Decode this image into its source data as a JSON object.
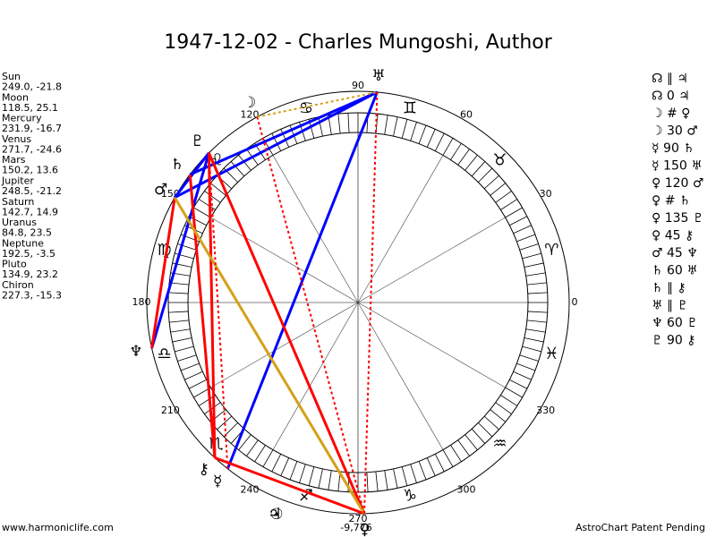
{
  "header": {
    "title": "1947-12-02 - Charles Mungoshi, Author"
  },
  "planets": [
    {
      "name": "Sun",
      "glyph": "☉",
      "position": "249.0, -21.8"
    },
    {
      "name": "Moon",
      "glyph": "☽",
      "position": "118.5, 25.1"
    },
    {
      "name": "Mercury",
      "glyph": "☿",
      "position": "231.9, -16.7"
    },
    {
      "name": "Venus",
      "glyph": "♀",
      "position": "271.7, -24.6"
    },
    {
      "name": "Mars",
      "glyph": "♂",
      "position": "150.2, 13.6"
    },
    {
      "name": "Jupiter",
      "glyph": "♃",
      "position": "248.5, -21.2"
    },
    {
      "name": "Saturn",
      "glyph": "♄",
      "position": "142.7, 14.9"
    },
    {
      "name": "Uranus",
      "glyph": "♅",
      "position": "84.8, 23.5"
    },
    {
      "name": "Neptune",
      "glyph": "♆",
      "position": "192.5, -3.5"
    },
    {
      "name": "Pluto",
      "glyph": "♇",
      "position": "134.9, 23.2"
    },
    {
      "name": "Chiron",
      "glyph": "⚷",
      "position": "227.3, -15.3"
    }
  ],
  "signs": [
    "♈",
    "♉",
    "♊",
    "♋",
    "♌",
    "♍",
    "♎",
    "♏",
    "♐",
    "♑",
    "♒",
    "♓"
  ],
  "degree_labels": [
    0,
    30,
    60,
    90,
    120,
    150,
    180,
    210,
    240,
    270,
    300,
    330
  ],
  "aspects": [
    "☊ ∥ ♃",
    "☊ 0 ♃",
    "☽ # ♀",
    "☽ 30 ♂",
    "☿ 90 ♄",
    "☿ 150 ♅",
    "♀ 120 ♂",
    "♀ # ♄",
    "♀ 135 ♇",
    "♀ 45 ⚷",
    "♂ 45 ♆",
    "♄ 60 ♅",
    "♄ ∥ ⚷",
    "♅ ∥ ♇",
    "♆ 60 ♇",
    "♇ 90 ⚷"
  ],
  "footer": {
    "left": "www.harmoniclife.com",
    "center": "-9,776",
    "right": "AstroChart Patent Pending"
  }
}
